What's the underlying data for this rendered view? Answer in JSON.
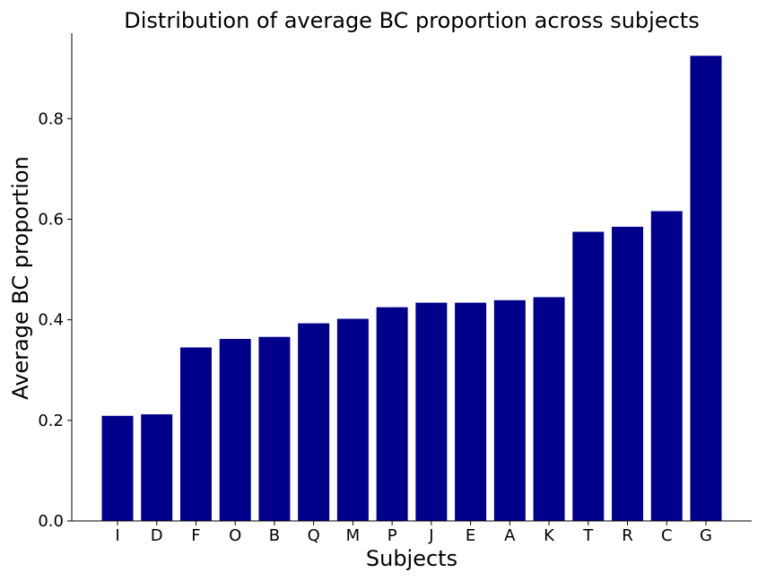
{
  "chart_data": {
    "type": "bar",
    "title": "Distribution of average BC proportion across subjects",
    "xlabel": "Subjects",
    "ylabel": "Average BC proportion",
    "categories": [
      "I",
      "D",
      "F",
      "O",
      "B",
      "Q",
      "M",
      "P",
      "J",
      "E",
      "A",
      "K",
      "T",
      "R",
      "C",
      "G"
    ],
    "values": [
      0.209,
      0.212,
      0.345,
      0.362,
      0.366,
      0.393,
      0.402,
      0.425,
      0.434,
      0.434,
      0.439,
      0.445,
      0.575,
      0.585,
      0.616,
      0.925
    ],
    "ylim": [
      0,
      0.97
    ],
    "yticks": [
      0.0,
      0.2,
      0.4,
      0.6,
      0.8
    ],
    "ytick_labels": [
      "0.0",
      "0.2",
      "0.4",
      "0.6",
      "0.8"
    ],
    "bar_color": "#00008b",
    "grid": false,
    "legend": "none"
  }
}
